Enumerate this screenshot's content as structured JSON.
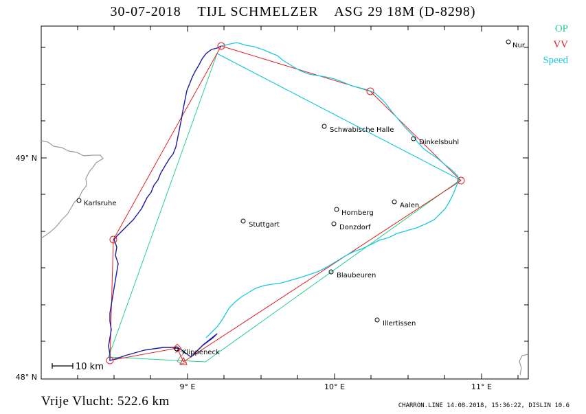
{
  "title": {
    "date": "30-07-2018",
    "pilot": "TIJL SCHMELZER",
    "glider": "ASG 29 18M (D-8298)"
  },
  "legend": [
    {
      "label": "OP",
      "color": "#22d08a"
    },
    {
      "label": "VV",
      "color": "#e02020"
    },
    {
      "label": "Speed",
      "color": "#18c8e0"
    }
  ],
  "colors": {
    "track": "#1a1aa0",
    "speed_track": "#18c8e0",
    "op_line": "#22d08a",
    "vv_line": "#e02020",
    "border": "#9a9a9a",
    "frame": "#000000"
  },
  "axes": {
    "lat_labels": [
      "49° N",
      "48° N"
    ],
    "lon_labels": [
      "9° E",
      "10° E",
      "11° E"
    ]
  },
  "places": [
    {
      "name": "Nur"
    },
    {
      "name": "Schwabische Halle"
    },
    {
      "name": "Dinkelsbuhl"
    },
    {
      "name": "Karlsruhe"
    },
    {
      "name": "Hornberg"
    },
    {
      "name": "Aalen"
    },
    {
      "name": "Stuttgart"
    },
    {
      "name": "Donzdorf"
    },
    {
      "name": "Blaubeuren"
    },
    {
      "name": "Illertissen"
    },
    {
      "name": "Klippeneck"
    }
  ],
  "scale_label": "10 km",
  "footer": {
    "distance": "Vrije Vlucht:  522.6 km",
    "credit": "CHARRON.LINE 14.08.2018, 15:36:22, DISLIN 10.6"
  }
}
